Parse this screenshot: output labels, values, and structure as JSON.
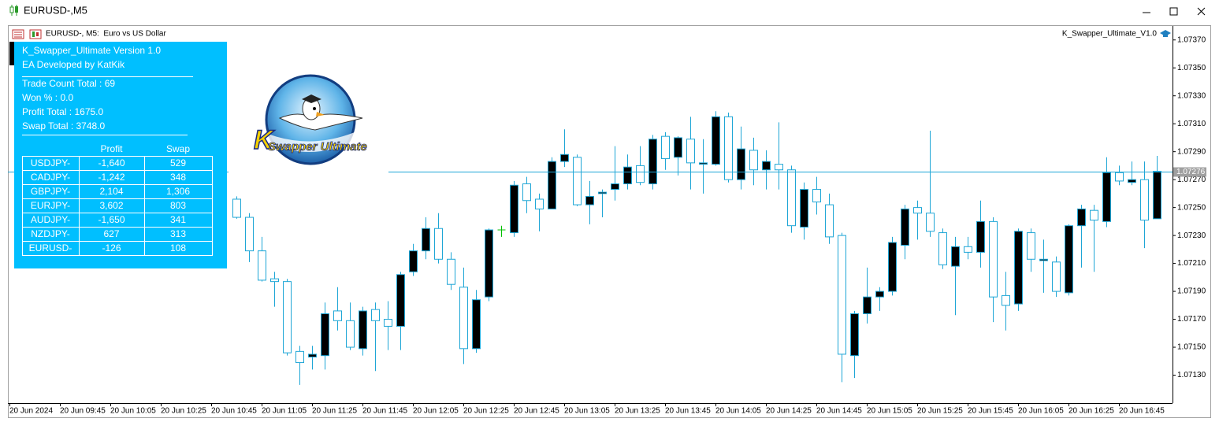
{
  "window": {
    "title": "EURUSD-,M5"
  },
  "chart_header": {
    "symbol": "EURUSD-, M5:  Euro vs US Dollar",
    "expert": "K_Swapper_Ultimate_V1.0"
  },
  "logo": {
    "letter": "K",
    "text": "Swapper Ultimate"
  },
  "panel": {
    "title": "K_Swapper_Ultimate Version 1.0",
    "developer": "EA Developed by KatKik",
    "stats": [
      "Trade Count Total : 69",
      "Won % : 0.0",
      "Profit Total : 1675.0",
      "Swap Total : 3748.0"
    ],
    "table": {
      "header": [
        "Profit",
        "Swap"
      ],
      "rows": [
        [
          "USDJPY-",
          "-1,640",
          "529"
        ],
        [
          "CADJPY-",
          "-1,242",
          "348"
        ],
        [
          "GBPJPY-",
          "2,104",
          "1,306"
        ],
        [
          "EURJPY-",
          "3,602",
          "803"
        ],
        [
          "AUDJPY-",
          "-1,650",
          "341"
        ],
        [
          "NZDJPY-",
          "627",
          "313"
        ],
        [
          "EURUSD-",
          "-126",
          "108"
        ]
      ]
    }
  },
  "chart_data": {
    "type": "candlestick",
    "categories": [
      "20 Jun 2024",
      null,
      null,
      null,
      "20 Jun 09:45",
      null,
      null,
      null,
      "20 Jun 10:05",
      null,
      null,
      null,
      "20 Jun 10:25",
      null,
      null,
      null,
      "20 Jun 10:45",
      null,
      null,
      null,
      "20 Jun 11:05",
      null,
      null,
      null,
      "20 Jun 11:25",
      null,
      null,
      null,
      "20 Jun 11:45",
      null,
      null,
      null,
      "20 Jun 12:05",
      null,
      null,
      null,
      "20 Jun 12:25",
      null,
      null,
      null,
      "20 Jun 12:45",
      null,
      null,
      null,
      "20 Jun 13:05",
      null,
      null,
      null,
      "20 Jun 13:25",
      null,
      null,
      null,
      "20 Jun 13:45",
      null,
      null,
      null,
      "20 Jun 14:05",
      null,
      null,
      null,
      "20 Jun 14:25",
      null,
      null,
      null,
      "20 Jun 14:45",
      null,
      null,
      null,
      "20 Jun 15:05",
      null,
      null,
      null,
      "20 Jun 15:25",
      null,
      null,
      null,
      "20 Jun 15:45",
      null,
      null,
      null,
      "20 Jun 16:05",
      null,
      null,
      null,
      "20 Jun 16:25",
      null,
      null,
      null,
      "20 Jun 16:45",
      null,
      null,
      null
    ],
    "open": [
      null,
      null,
      null,
      null,
      null,
      null,
      null,
      null,
      null,
      null,
      null,
      null,
      null,
      null,
      null,
      null,
      null,
      null,
      1.07256,
      1.07243,
      1.07219,
      1.07199,
      1.07197,
      1.07147,
      1.07143,
      1.07144,
      1.07176,
      1.07169,
      1.07149,
      1.07177,
      1.0717,
      1.07165,
      1.07204,
      1.07219,
      1.07235,
      1.07213,
      1.07193,
      1.07149,
      1.07186,
      1.07234,
      1.07232,
      1.07267,
      1.07256,
      1.07249,
      1.07283,
      1.07286,
      1.07252,
      1.0726,
      1.07263,
      1.07267,
      1.0728,
      1.07267,
      1.07301,
      1.07286,
      1.07299,
      1.07281,
      1.07281,
      1.07315,
      1.0727,
      1.07291,
      1.07277,
      1.07281,
      1.07277,
      1.07236,
      1.07263,
      1.07252,
      1.0723,
      1.07144,
      1.07174,
      1.07186,
      1.0719,
      1.07223,
      1.0725,
      1.07246,
      1.07232,
      1.07208,
      1.07222,
      1.07218,
      1.0724,
      1.07187,
      1.07181,
      1.07232,
      1.07212,
      1.07211,
      1.07189,
      1.07237,
      1.07248,
      1.0724,
      1.07275,
      1.07268,
      1.0727,
      1.07242
    ],
    "high": [
      null,
      null,
      null,
      null,
      null,
      null,
      null,
      null,
      null,
      null,
      null,
      null,
      null,
      null,
      null,
      null,
      null,
      null,
      1.07258,
      1.07246,
      1.07229,
      1.07204,
      1.07199,
      1.07151,
      1.07151,
      1.07182,
      1.07193,
      1.07182,
      1.07179,
      1.07182,
      1.07183,
      1.07204,
      1.07224,
      1.07243,
      1.07246,
      1.07218,
      1.07207,
      1.07191,
      1.07235,
      1.07237,
      1.07269,
      1.07272,
      1.0726,
      1.07286,
      1.07306,
      1.07288,
      1.07269,
      1.07263,
      1.07294,
      1.07288,
      1.07294,
      1.07302,
      1.07304,
      1.07301,
      1.07315,
      1.07299,
      1.07319,
      1.07318,
      1.07308,
      1.073,
      1.07291,
      1.07311,
      1.0728,
      1.07268,
      1.07272,
      1.0726,
      1.07232,
      1.07176,
      1.07207,
      1.07193,
      1.07229,
      1.07252,
      1.07255,
      1.07305,
      1.07235,
      1.07229,
      1.07229,
      1.07255,
      1.07243,
      1.07204,
      1.07235,
      1.07235,
      1.07227,
      1.07215,
      1.07238,
      1.07252,
      1.07252,
      1.07286,
      1.0728,
      1.07283,
      1.07283,
      1.07287
    ],
    "low": [
      null,
      null,
      null,
      null,
      null,
      null,
      null,
      null,
      null,
      null,
      null,
      null,
      null,
      null,
      null,
      null,
      null,
      null,
      1.07242,
      1.07211,
      1.07197,
      1.07179,
      1.07144,
      1.07123,
      1.07134,
      1.07134,
      1.07162,
      1.07148,
      1.07144,
      1.07133,
      1.07148,
      1.07148,
      1.07201,
      1.07213,
      1.0721,
      1.07191,
      1.07138,
      1.07146,
      1.07183,
      1.07229,
      1.07229,
      1.07246,
      1.07233,
      1.07249,
      1.07279,
      1.07251,
      1.07238,
      1.07243,
      1.07255,
      1.07263,
      1.07266,
      1.07263,
      1.07277,
      1.07273,
      1.07263,
      1.0726,
      1.0728,
      1.07268,
      1.07263,
      1.07266,
      1.07263,
      1.07263,
      1.07232,
      1.07227,
      1.07245,
      1.07224,
      1.07125,
      1.07128,
      1.07167,
      1.07176,
      1.07187,
      1.07213,
      1.07227,
      1.07229,
      1.07206,
      1.07173,
      1.07213,
      1.07207,
      1.07168,
      1.07162,
      1.07176,
      1.07204,
      1.07189,
      1.07186,
      1.07187,
      1.07207,
      1.07204,
      1.07236,
      1.07266,
      1.07266,
      1.07221,
      1.07242
    ],
    "close": [
      null,
      null,
      null,
      null,
      null,
      null,
      null,
      null,
      null,
      null,
      null,
      null,
      null,
      null,
      null,
      null,
      null,
      null,
      1.07243,
      1.07219,
      1.07198,
      1.07197,
      1.07146,
      1.07139,
      1.07145,
      1.07174,
      1.07169,
      1.0715,
      1.07176,
      1.07169,
      1.07165,
      1.07202,
      1.07219,
      1.07235,
      1.07213,
      1.07195,
      1.07149,
      1.07184,
      1.07234,
      1.07234,
      1.07266,
      1.07255,
      1.07249,
      1.07283,
      1.07288,
      1.07252,
      1.07258,
      1.07261,
      1.07267,
      1.07279,
      1.07268,
      1.07299,
      1.07285,
      1.073,
      1.07282,
      1.07282,
      1.07315,
      1.0727,
      1.07292,
      1.07277,
      1.07283,
      1.07277,
      1.07237,
      1.07263,
      1.07254,
      1.07229,
      1.07145,
      1.07174,
      1.07186,
      1.0719,
      1.07225,
      1.07249,
      1.07246,
      1.07233,
      1.07209,
      1.07222,
      1.07218,
      1.0724,
      1.07186,
      1.0718,
      1.07233,
      1.07213,
      1.07213,
      1.0719,
      1.07237,
      1.07249,
      1.07241,
      1.07275,
      1.07269,
      1.0727,
      1.07241,
      1.07276
    ],
    "ylim": [
      1.0711,
      1.0738
    ],
    "yticks": [
      {
        "value": 1.0737,
        "label": "1.07370"
      },
      {
        "value": 1.0735,
        "label": "1.07350"
      },
      {
        "value": 1.0733,
        "label": "1.07330"
      },
      {
        "value": 1.0731,
        "label": "1.07310"
      },
      {
        "value": 1.0729,
        "label": "1.07290"
      },
      {
        "value": 1.0727,
        "label": "1.07270"
      },
      {
        "value": 1.0725,
        "label": "1.07250"
      },
      {
        "value": 1.0723,
        "label": "1.07230"
      },
      {
        "value": 1.0721,
        "label": "1.07210"
      },
      {
        "value": 1.0719,
        "label": "1.07190"
      },
      {
        "value": 1.0717,
        "label": "1.07170"
      },
      {
        "value": 1.0715,
        "label": "1.07150"
      },
      {
        "value": 1.0713,
        "label": "1.07130"
      }
    ],
    "last_price": 1.07276,
    "up_color": "#000000",
    "down_color": "#ffffff",
    "line_color": "#1ea6d6",
    "doji_color": "#00c000",
    "grid": false
  }
}
